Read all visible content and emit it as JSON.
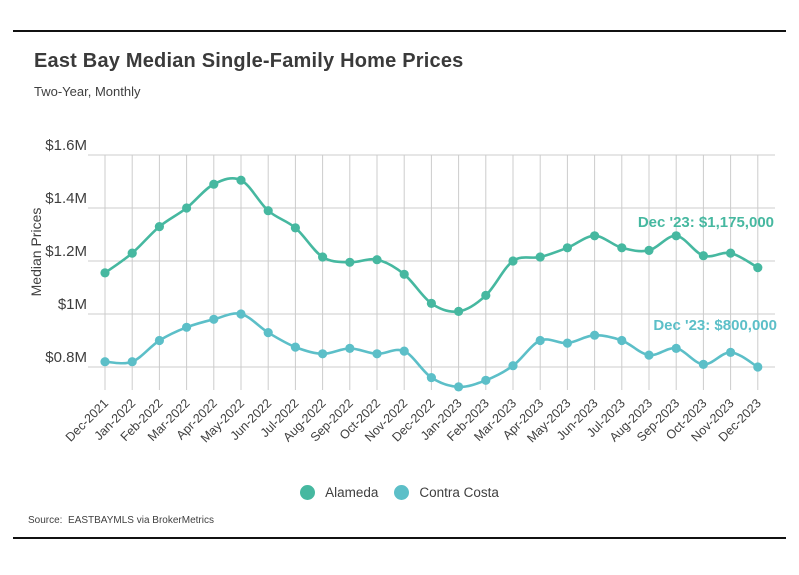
{
  "header": {
    "title": "East Bay Median Single-Family Home Prices",
    "subtitle": "Two-Year, Monthly"
  },
  "source": "Source:  EASTBAYMLS via BrokerMetrics",
  "colors": {
    "alameda": "#46b8a0",
    "contra_costa": "#5cbfc8",
    "grid": "#cccccc",
    "text": "#3e3e3e",
    "rule": "#111111"
  },
  "legend": {
    "items": [
      {
        "label": "Alameda",
        "color": "#46b8a0"
      },
      {
        "label": "Contra Costa",
        "color": "#5cbfc8"
      }
    ]
  },
  "chart_data": {
    "type": "line",
    "title": "East Bay Median Single-Family Home Prices",
    "subtitle": "Two-Year, Monthly",
    "xlabel": "",
    "ylabel": "Median Prices",
    "grid": true,
    "legend_position": "bottom",
    "ylim": [
      710000,
      1600000
    ],
    "y_ticks": [
      {
        "label": "$1.6M",
        "value": 1600000
      },
      {
        "label": "$1.4M",
        "value": 1400000
      },
      {
        "label": "$1.2M",
        "value": 1200000
      },
      {
        "label": "$1M",
        "value": 1000000
      },
      {
        "label": "$0.8M",
        "value": 800000
      }
    ],
    "categories": [
      "Dec-2021",
      "Jan-2022",
      "Feb-2022",
      "Mar-2022",
      "Apr-2022",
      "May-2022",
      "Jun-2022",
      "Jul-2022",
      "Aug-2022",
      "Sep-2022",
      "Oct-2022",
      "Nov-2022",
      "Dec-2022",
      "Jan-2023",
      "Feb-2023",
      "Mar-2023",
      "Apr-2023",
      "May-2023",
      "Jun-2023",
      "Jul-2023",
      "Aug-2023",
      "Sep-2023",
      "Oct-2023",
      "Nov-2023",
      "Dec-2023"
    ],
    "series": [
      {
        "name": "Alameda",
        "color": "#46b8a0",
        "values": [
          1155000,
          1230000,
          1330000,
          1400000,
          1490000,
          1505000,
          1390000,
          1325000,
          1215000,
          1195000,
          1205000,
          1150000,
          1040000,
          1010000,
          1070000,
          1200000,
          1215000,
          1250000,
          1295000,
          1250000,
          1240000,
          1295000,
          1220000,
          1230000,
          1175000
        ]
      },
      {
        "name": "Contra Costa",
        "color": "#5cbfc8",
        "values": [
          820000,
          820000,
          900000,
          950000,
          980000,
          1000000,
          930000,
          875000,
          850000,
          870000,
          850000,
          860000,
          760000,
          725000,
          750000,
          805000,
          900000,
          890000,
          920000,
          900000,
          845000,
          870000,
          810000,
          855000,
          800000
        ]
      }
    ],
    "annotations": [
      {
        "series": "Alameda",
        "text": "Dec '23: $1,175,000"
      },
      {
        "series": "Contra Costa",
        "text": "Dec '23: $800,000"
      }
    ]
  }
}
